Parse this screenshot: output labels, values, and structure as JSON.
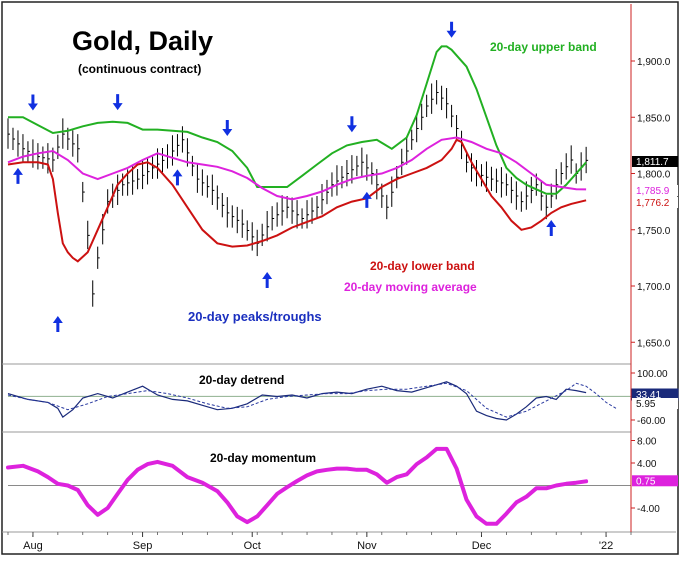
{
  "title": "Gold, Daily",
  "subtitle": "(continuous contract)",
  "colors": {
    "upper_band": "#22b022",
    "lower_band": "#cc1111",
    "moving_average": "#dd22dd",
    "peaks_label": "#1a2fbf",
    "arrow": "#1030e0",
    "detrend": "#1a2a7a",
    "axis": "#cc2222",
    "zero_line": "#8fb08f"
  },
  "labels": {
    "upper_band": "20-day upper band",
    "lower_band": "20-day lower band",
    "moving_average": "20-day moving average",
    "peaks_troughs": "20-day peaks/troughs",
    "detrend": "20-day detrend",
    "momentum": "20-day momentum"
  },
  "chart_data": [
    {
      "type": "line",
      "title": "Gold, Daily",
      "yticks": [
        "1,900.0",
        "1,850.0",
        "1,800.0",
        "1,750.0",
        "1,700.0",
        "1,650.0"
      ],
      "ylim": [
        1630,
        1950
      ],
      "last_values": [
        {
          "name": "price",
          "value": "1,811.7",
          "color": "#000000"
        },
        {
          "name": "moving_average",
          "value": "1,785.9",
          "color": "#dd22dd"
        },
        {
          "name": "lower_band",
          "value": "1,776.2",
          "color": "#cc1111"
        }
      ],
      "x_month_labels": [
        "Aug",
        "Sep",
        "Oct",
        "Nov",
        "Dec",
        "'22"
      ],
      "x_month_day_index": [
        5,
        27,
        49,
        72,
        95,
        120
      ],
      "price": {
        "t": [
          0,
          3,
          6,
          9,
          11,
          14,
          16,
          17,
          18,
          20,
          23,
          26,
          29,
          32,
          35,
          38,
          41,
          44,
          47,
          50,
          53,
          56,
          59,
          62,
          65,
          68,
          71,
          73,
          76,
          79,
          82,
          84,
          86,
          88,
          90,
          92,
          94,
          97,
          100,
          103,
          106,
          108,
          111,
          113,
          114,
          116
        ],
        "v": [
          1835,
          1822,
          1815,
          1812,
          1835,
          1822,
          1745,
          1693,
          1725,
          1775,
          1790,
          1795,
          1805,
          1815,
          1830,
          1795,
          1785,
          1765,
          1755,
          1738,
          1760,
          1770,
          1760,
          1770,
          1790,
          1800,
          1810,
          1800,
          1770,
          1810,
          1840,
          1860,
          1872,
          1862,
          1840,
          1810,
          1800,
          1795,
          1790,
          1775,
          1790,
          1770,
          1800,
          1812,
          1800,
          1811.7
        ]
      },
      "upper_band": {
        "t": [
          0,
          3,
          6,
          9,
          12,
          15,
          18,
          21,
          24,
          27,
          30,
          33,
          36,
          39,
          42,
          45,
          48,
          50,
          53,
          56,
          59,
          62,
          65,
          68,
          71,
          74,
          77,
          80,
          82,
          84,
          86,
          87,
          88,
          89,
          90,
          92,
          94,
          96,
          98,
          100,
          102,
          104,
          106,
          108,
          110,
          112,
          114,
          116
        ],
        "v": [
          1850,
          1850,
          1843,
          1836,
          1838,
          1842,
          1845,
          1846,
          1845,
          1839,
          1839,
          1838,
          1837,
          1832,
          1828,
          1820,
          1805,
          1788,
          1788,
          1788,
          1798,
          1808,
          1818,
          1825,
          1828,
          1830,
          1822,
          1832,
          1852,
          1880,
          1908,
          1913,
          1913,
          1910,
          1905,
          1895,
          1875,
          1850,
          1825,
          1805,
          1796,
          1790,
          1786,
          1782,
          1782,
          1790,
          1800,
          1810
        ]
      },
      "moving_average": {
        "t": [
          0,
          3,
          6,
          9,
          12,
          15,
          18,
          21,
          24,
          27,
          30,
          33,
          36,
          39,
          42,
          45,
          48,
          51,
          54,
          57,
          60,
          63,
          66,
          69,
          72,
          75,
          78,
          81,
          84,
          87,
          90,
          93,
          96,
          99,
          102,
          105,
          108,
          111,
          114,
          116
        ],
        "v": [
          1810,
          1815,
          1818,
          1820,
          1812,
          1800,
          1795,
          1800,
          1805,
          1812,
          1818,
          1814,
          1810,
          1808,
          1806,
          1802,
          1796,
          1787,
          1780,
          1777,
          1780,
          1784,
          1790,
          1795,
          1798,
          1800,
          1805,
          1812,
          1822,
          1830,
          1832,
          1828,
          1822,
          1818,
          1810,
          1800,
          1790,
          1788,
          1786,
          1785.9
        ]
      },
      "lower_band": {
        "t": [
          0,
          3,
          6,
          8,
          9,
          10,
          11,
          12,
          13,
          14,
          16,
          18,
          20,
          22,
          24,
          26,
          28,
          30,
          33,
          36,
          39,
          42,
          45,
          48,
          51,
          54,
          57,
          60,
          63,
          66,
          69,
          72,
          75,
          78,
          81,
          84,
          87,
          89,
          90,
          91,
          93,
          95,
          97,
          99,
          101,
          103,
          105,
          107,
          109,
          111,
          113,
          116
        ],
        "v": [
          1808,
          1810,
          1810,
          1808,
          1795,
          1765,
          1738,
          1730,
          1725,
          1722,
          1730,
          1750,
          1770,
          1790,
          1800,
          1808,
          1810,
          1805,
          1790,
          1770,
          1750,
          1738,
          1735,
          1736,
          1740,
          1745,
          1752,
          1757,
          1762,
          1770,
          1775,
          1778,
          1788,
          1795,
          1800,
          1805,
          1812,
          1822,
          1830,
          1828,
          1810,
          1795,
          1780,
          1770,
          1758,
          1750,
          1752,
          1758,
          1765,
          1770,
          1773,
          1776.2
        ]
      },
      "down_arrows_t": [
        5,
        22,
        44,
        69,
        89
      ],
      "up_arrows_t": [
        2,
        10,
        34,
        52,
        72,
        109
      ]
    },
    {
      "type": "line",
      "title": "20-day detrend",
      "yticks": [
        "100.00",
        "-60.00"
      ],
      "ylim": [
        -100,
        120
      ],
      "last_values": [
        {
          "name": "detrend_value",
          "value": "33.41",
          "color": "#1a2a7a"
        },
        {
          "name": "detrend_avg",
          "value": "5.95",
          "color": "#1a2a7a"
        }
      ],
      "solid": {
        "t": [
          0,
          4,
          8,
          10,
          11,
          13,
          15,
          18,
          21,
          24,
          27,
          30,
          33,
          36,
          39,
          42,
          45,
          48,
          51,
          54,
          57,
          60,
          63,
          66,
          69,
          72,
          75,
          78,
          81,
          84,
          86,
          88,
          90,
          92,
          94,
          96,
          98,
          100,
          102,
          104,
          106,
          108,
          110,
          112,
          114,
          116
        ],
        "v": [
          30,
          10,
          0,
          -20,
          -50,
          -25,
          15,
          30,
          15,
          35,
          55,
          25,
          10,
          5,
          -10,
          -25,
          -20,
          -5,
          25,
          20,
          25,
          15,
          30,
          35,
          30,
          45,
          55,
          40,
          35,
          50,
          60,
          70,
          55,
          30,
          -30,
          -45,
          -55,
          -60,
          -40,
          -15,
          15,
          20,
          10,
          45,
          40,
          33.41
        ]
      },
      "dashed": {
        "t": [
          0,
          4,
          8,
          12,
          16,
          20,
          24,
          28,
          32,
          36,
          40,
          44,
          48,
          52,
          56,
          60,
          64,
          68,
          72,
          76,
          80,
          84,
          88,
          92,
          96,
          100,
          104,
          108,
          112,
          114,
          116,
          118,
          120,
          122
        ],
        "v": [
          25,
          10,
          0,
          -25,
          -5,
          20,
          30,
          40,
          30,
          15,
          -5,
          -20,
          -15,
          10,
          20,
          25,
          30,
          30,
          40,
          45,
          45,
          55,
          65,
          40,
          -20,
          -50,
          -30,
          5,
          40,
          65,
          55,
          30,
          0,
          -20
        ]
      }
    },
    {
      "type": "line",
      "title": "20-day momentum",
      "yticks": [
        "8.00",
        "4.00",
        "-4.00"
      ],
      "ylim": [
        -7,
        10
      ],
      "zero_value": 0,
      "last_values": [
        {
          "name": "momentum",
          "value": "0.75",
          "color": "#dd22dd"
        }
      ],
      "series": {
        "t": [
          0,
          3,
          6,
          8,
          10,
          12,
          14,
          16,
          18,
          20,
          22,
          24,
          26,
          28,
          30,
          33,
          36,
          39,
          42,
          44,
          46,
          48,
          50,
          52,
          54,
          56,
          58,
          60,
          62,
          64,
          66,
          68,
          70,
          72,
          74,
          76,
          78,
          80,
          82,
          84,
          86,
          88,
          90,
          92,
          94,
          96,
          98,
          100,
          102,
          104,
          106,
          108,
          110,
          112,
          114,
          116
        ],
        "v": [
          3.2,
          3.5,
          2.5,
          1.5,
          0.3,
          0.0,
          -0.8,
          -3.5,
          -5.2,
          -4.0,
          -1.5,
          1.0,
          2.8,
          3.8,
          4.2,
          3.5,
          1.5,
          0.5,
          -1.0,
          -3.0,
          -5.5,
          -6.5,
          -5.5,
          -3.5,
          -1.5,
          -0.3,
          0.8,
          1.8,
          2.5,
          2.8,
          3.0,
          3.0,
          2.8,
          2.8,
          2.0,
          0.5,
          1.5,
          2.0,
          3.8,
          5.0,
          6.5,
          6.5,
          3.0,
          -2.5,
          -5.5,
          -6.8,
          -6.8,
          -5.0,
          -3.0,
          -2.0,
          -0.5,
          -0.5,
          0.0,
          0.3,
          0.5,
          0.75
        ]
      }
    }
  ]
}
